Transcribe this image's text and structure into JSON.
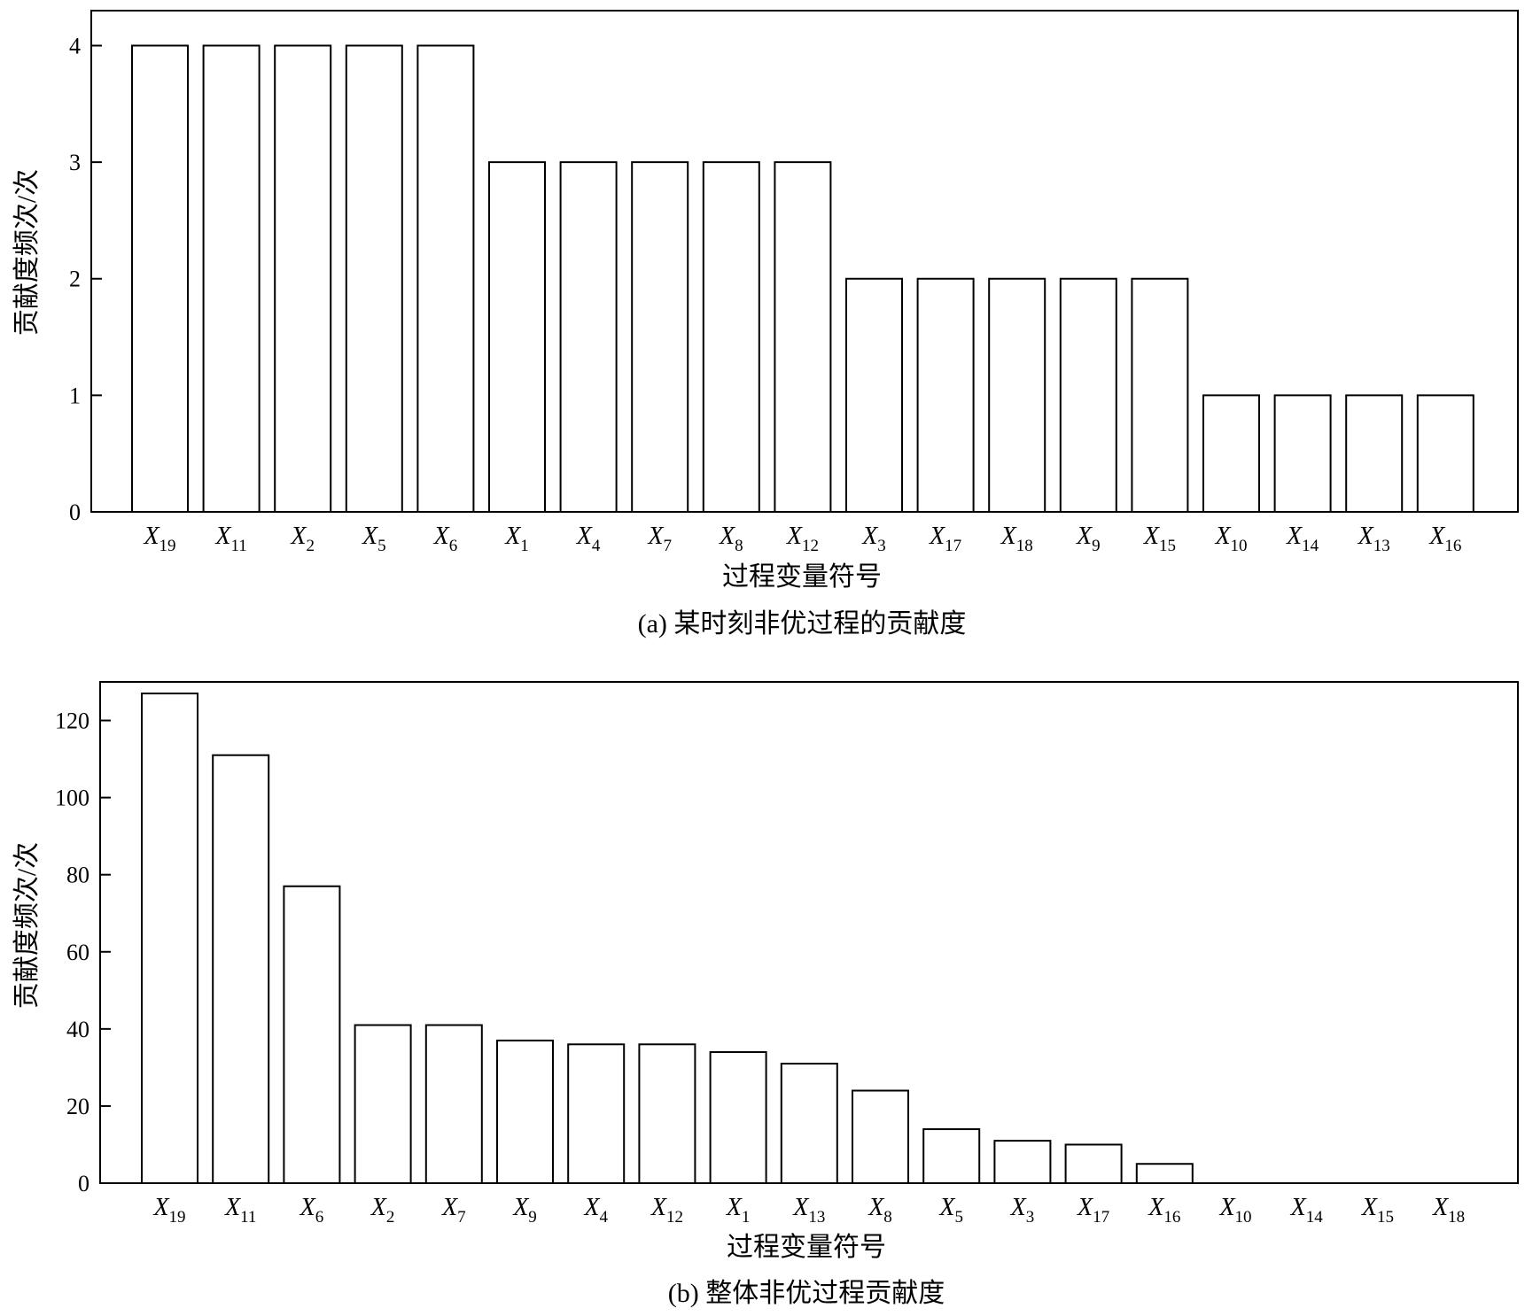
{
  "chart_data": [
    {
      "type": "bar",
      "caption": "(a) 某时刻非优过程的贡献度",
      "xlabel": "过程变量符号",
      "ylabel": "贡献度频次/次",
      "ylim": [
        0,
        4.3
      ],
      "yticks": [
        0,
        1,
        2,
        3,
        4
      ],
      "categories": [
        {
          "base": "X",
          "sub": "19"
        },
        {
          "base": "X",
          "sub": "11"
        },
        {
          "base": "X",
          "sub": "2"
        },
        {
          "base": "X",
          "sub": "5"
        },
        {
          "base": "X",
          "sub": "6"
        },
        {
          "base": "X",
          "sub": "1"
        },
        {
          "base": "X",
          "sub": "4"
        },
        {
          "base": "X",
          "sub": "7"
        },
        {
          "base": "X",
          "sub": "8"
        },
        {
          "base": "X",
          "sub": "12"
        },
        {
          "base": "X",
          "sub": "3"
        },
        {
          "base": "X",
          "sub": "17"
        },
        {
          "base": "X",
          "sub": "18"
        },
        {
          "base": "X",
          "sub": "9"
        },
        {
          "base": "X",
          "sub": "15"
        },
        {
          "base": "X",
          "sub": "10"
        },
        {
          "base": "X",
          "sub": "14"
        },
        {
          "base": "X",
          "sub": "13"
        },
        {
          "base": "X",
          "sub": "16"
        }
      ],
      "values": [
        4,
        4,
        4,
        4,
        4,
        3,
        3,
        3,
        3,
        3,
        2,
        2,
        2,
        2,
        2,
        1,
        1,
        1,
        1
      ],
      "grid": false,
      "bar_fill": "#ffffff",
      "bar_stroke": "#000000"
    },
    {
      "type": "bar",
      "caption": "(b) 整体非优过程贡献度",
      "xlabel": "过程变量符号",
      "ylabel": "贡献度频次/次",
      "ylim": [
        0,
        130
      ],
      "yticks": [
        0,
        20,
        40,
        60,
        80,
        100,
        120
      ],
      "categories": [
        {
          "base": "X",
          "sub": "19"
        },
        {
          "base": "X",
          "sub": "11"
        },
        {
          "base": "X",
          "sub": "6"
        },
        {
          "base": "X",
          "sub": "2"
        },
        {
          "base": "X",
          "sub": "7"
        },
        {
          "base": "X",
          "sub": "9"
        },
        {
          "base": "X",
          "sub": "4"
        },
        {
          "base": "X",
          "sub": "12"
        },
        {
          "base": "X",
          "sub": "1"
        },
        {
          "base": "X",
          "sub": "13"
        },
        {
          "base": "X",
          "sub": "8"
        },
        {
          "base": "X",
          "sub": "5"
        },
        {
          "base": "X",
          "sub": "3"
        },
        {
          "base": "X",
          "sub": "17"
        },
        {
          "base": "X",
          "sub": "16"
        },
        {
          "base": "X",
          "sub": "10"
        },
        {
          "base": "X",
          "sub": "14"
        },
        {
          "base": "X",
          "sub": "15"
        },
        {
          "base": "X",
          "sub": "18"
        }
      ],
      "values": [
        127,
        111,
        77,
        41,
        41,
        37,
        36,
        36,
        34,
        31,
        24,
        14,
        11,
        10,
        5,
        0,
        0,
        0,
        0
      ],
      "grid": false,
      "bar_fill": "#ffffff",
      "bar_stroke": "#000000"
    }
  ]
}
